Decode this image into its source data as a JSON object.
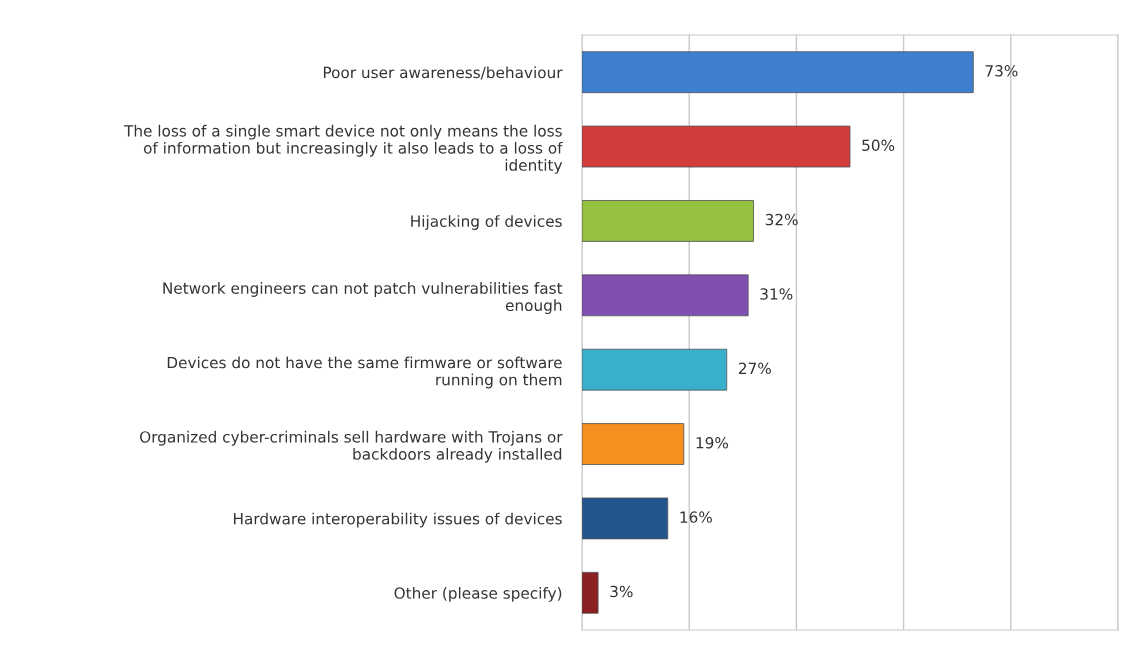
{
  "chart_data": {
    "type": "bar",
    "orientation": "horizontal",
    "categories": [
      "Poor user awareness/behaviour",
      "The loss of a single smart device not only means the loss\nof information but increasingly it also leads to a loss of\nidentity",
      "Hijacking of devices",
      "Network engineers can not patch vulnerabilities fast\nenough",
      "Devices do not have the same firmware or software\nrunning on them",
      "Organized cyber-criminals sell hardware with Trojans or\nbackdoors already installed",
      "Hardware interoperability issues of devices",
      "Other (please specify)"
    ],
    "values": [
      73,
      50,
      32,
      31,
      27,
      19,
      16,
      3
    ],
    "colors": [
      "#3f7fd0",
      "#d23c3c",
      "#96c040",
      "#8050b0",
      "#38b0cc",
      "#f5901e",
      "#24558f",
      "#8c1f1f"
    ],
    "value_labels": [
      "73%",
      "50%",
      "32%",
      "31%",
      "27%",
      "19%",
      "16%",
      "3%"
    ],
    "xlim": [
      0,
      100
    ],
    "xticks": [
      {
        "value": 0,
        "label": null
      },
      {
        "value": 20,
        "label": null
      },
      {
        "value": 40,
        "label": null
      },
      {
        "value": 60,
        "label": null
      },
      {
        "value": 80,
        "label": null
      },
      {
        "value": 100,
        "label": null
      }
    ],
    "grid": "x",
    "tick_labels": "y"
  }
}
